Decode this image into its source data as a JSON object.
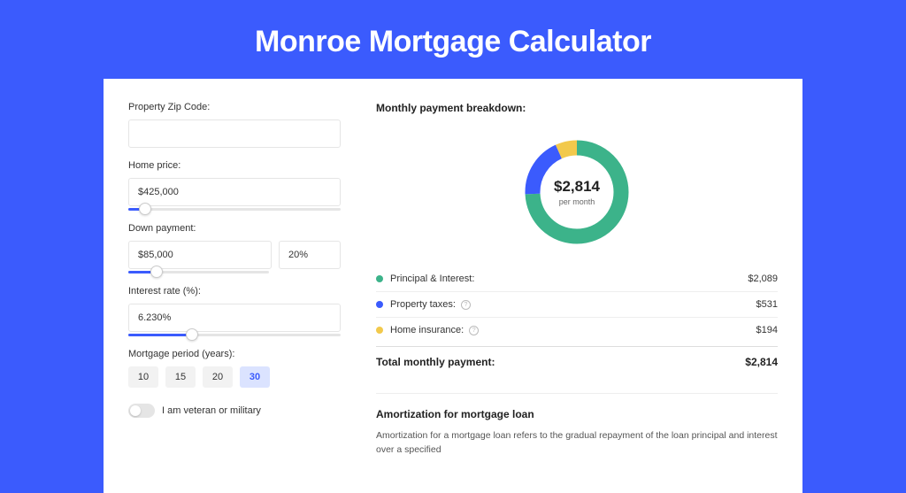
{
  "title": "Monroe Mortgage Calculator",
  "colors": {
    "page_bg": "#3b5bfd",
    "card_wrap_bg": "#3752e8",
    "card_bg": "#ffffff",
    "text": "#333333",
    "accent": "#3b5bfd"
  },
  "form": {
    "zip": {
      "label": "Property Zip Code:",
      "value": ""
    },
    "home_price": {
      "label": "Home price:",
      "value": "$425,000",
      "slider_pct": 8
    },
    "down_payment": {
      "label": "Down payment:",
      "amount": "$85,000",
      "percent": "20%",
      "slider_pct": 20
    },
    "interest_rate": {
      "label": "Interest rate (%):",
      "value": "6.230%",
      "slider_pct": 30
    },
    "mortgage_period": {
      "label": "Mortgage period (years):",
      "options": [
        "10",
        "15",
        "20",
        "30"
      ],
      "selected": "30"
    },
    "veteran": {
      "label": "I am veteran or military",
      "checked": false
    }
  },
  "breakdown": {
    "title": "Monthly payment breakdown:",
    "center_amount": "$2,814",
    "center_sub": "per month",
    "donut": {
      "segments": [
        {
          "label": "Principal & Interest:",
          "value": "$2,089",
          "pct": 74.2,
          "color": "#3cb38a"
        },
        {
          "label": "Property taxes:",
          "value": "$531",
          "pct": 18.9,
          "color": "#3b5bfd",
          "info": true
        },
        {
          "label": "Home insurance:",
          "value": "$194",
          "pct": 6.9,
          "color": "#f2c94c",
          "info": true
        }
      ],
      "stroke_width": 17,
      "radius": 50
    },
    "total": {
      "label": "Total monthly payment:",
      "value": "$2,814"
    }
  },
  "amortization": {
    "title": "Amortization for mortgage loan",
    "text": "Amortization for a mortgage loan refers to the gradual repayment of the loan principal and interest over a specified"
  }
}
